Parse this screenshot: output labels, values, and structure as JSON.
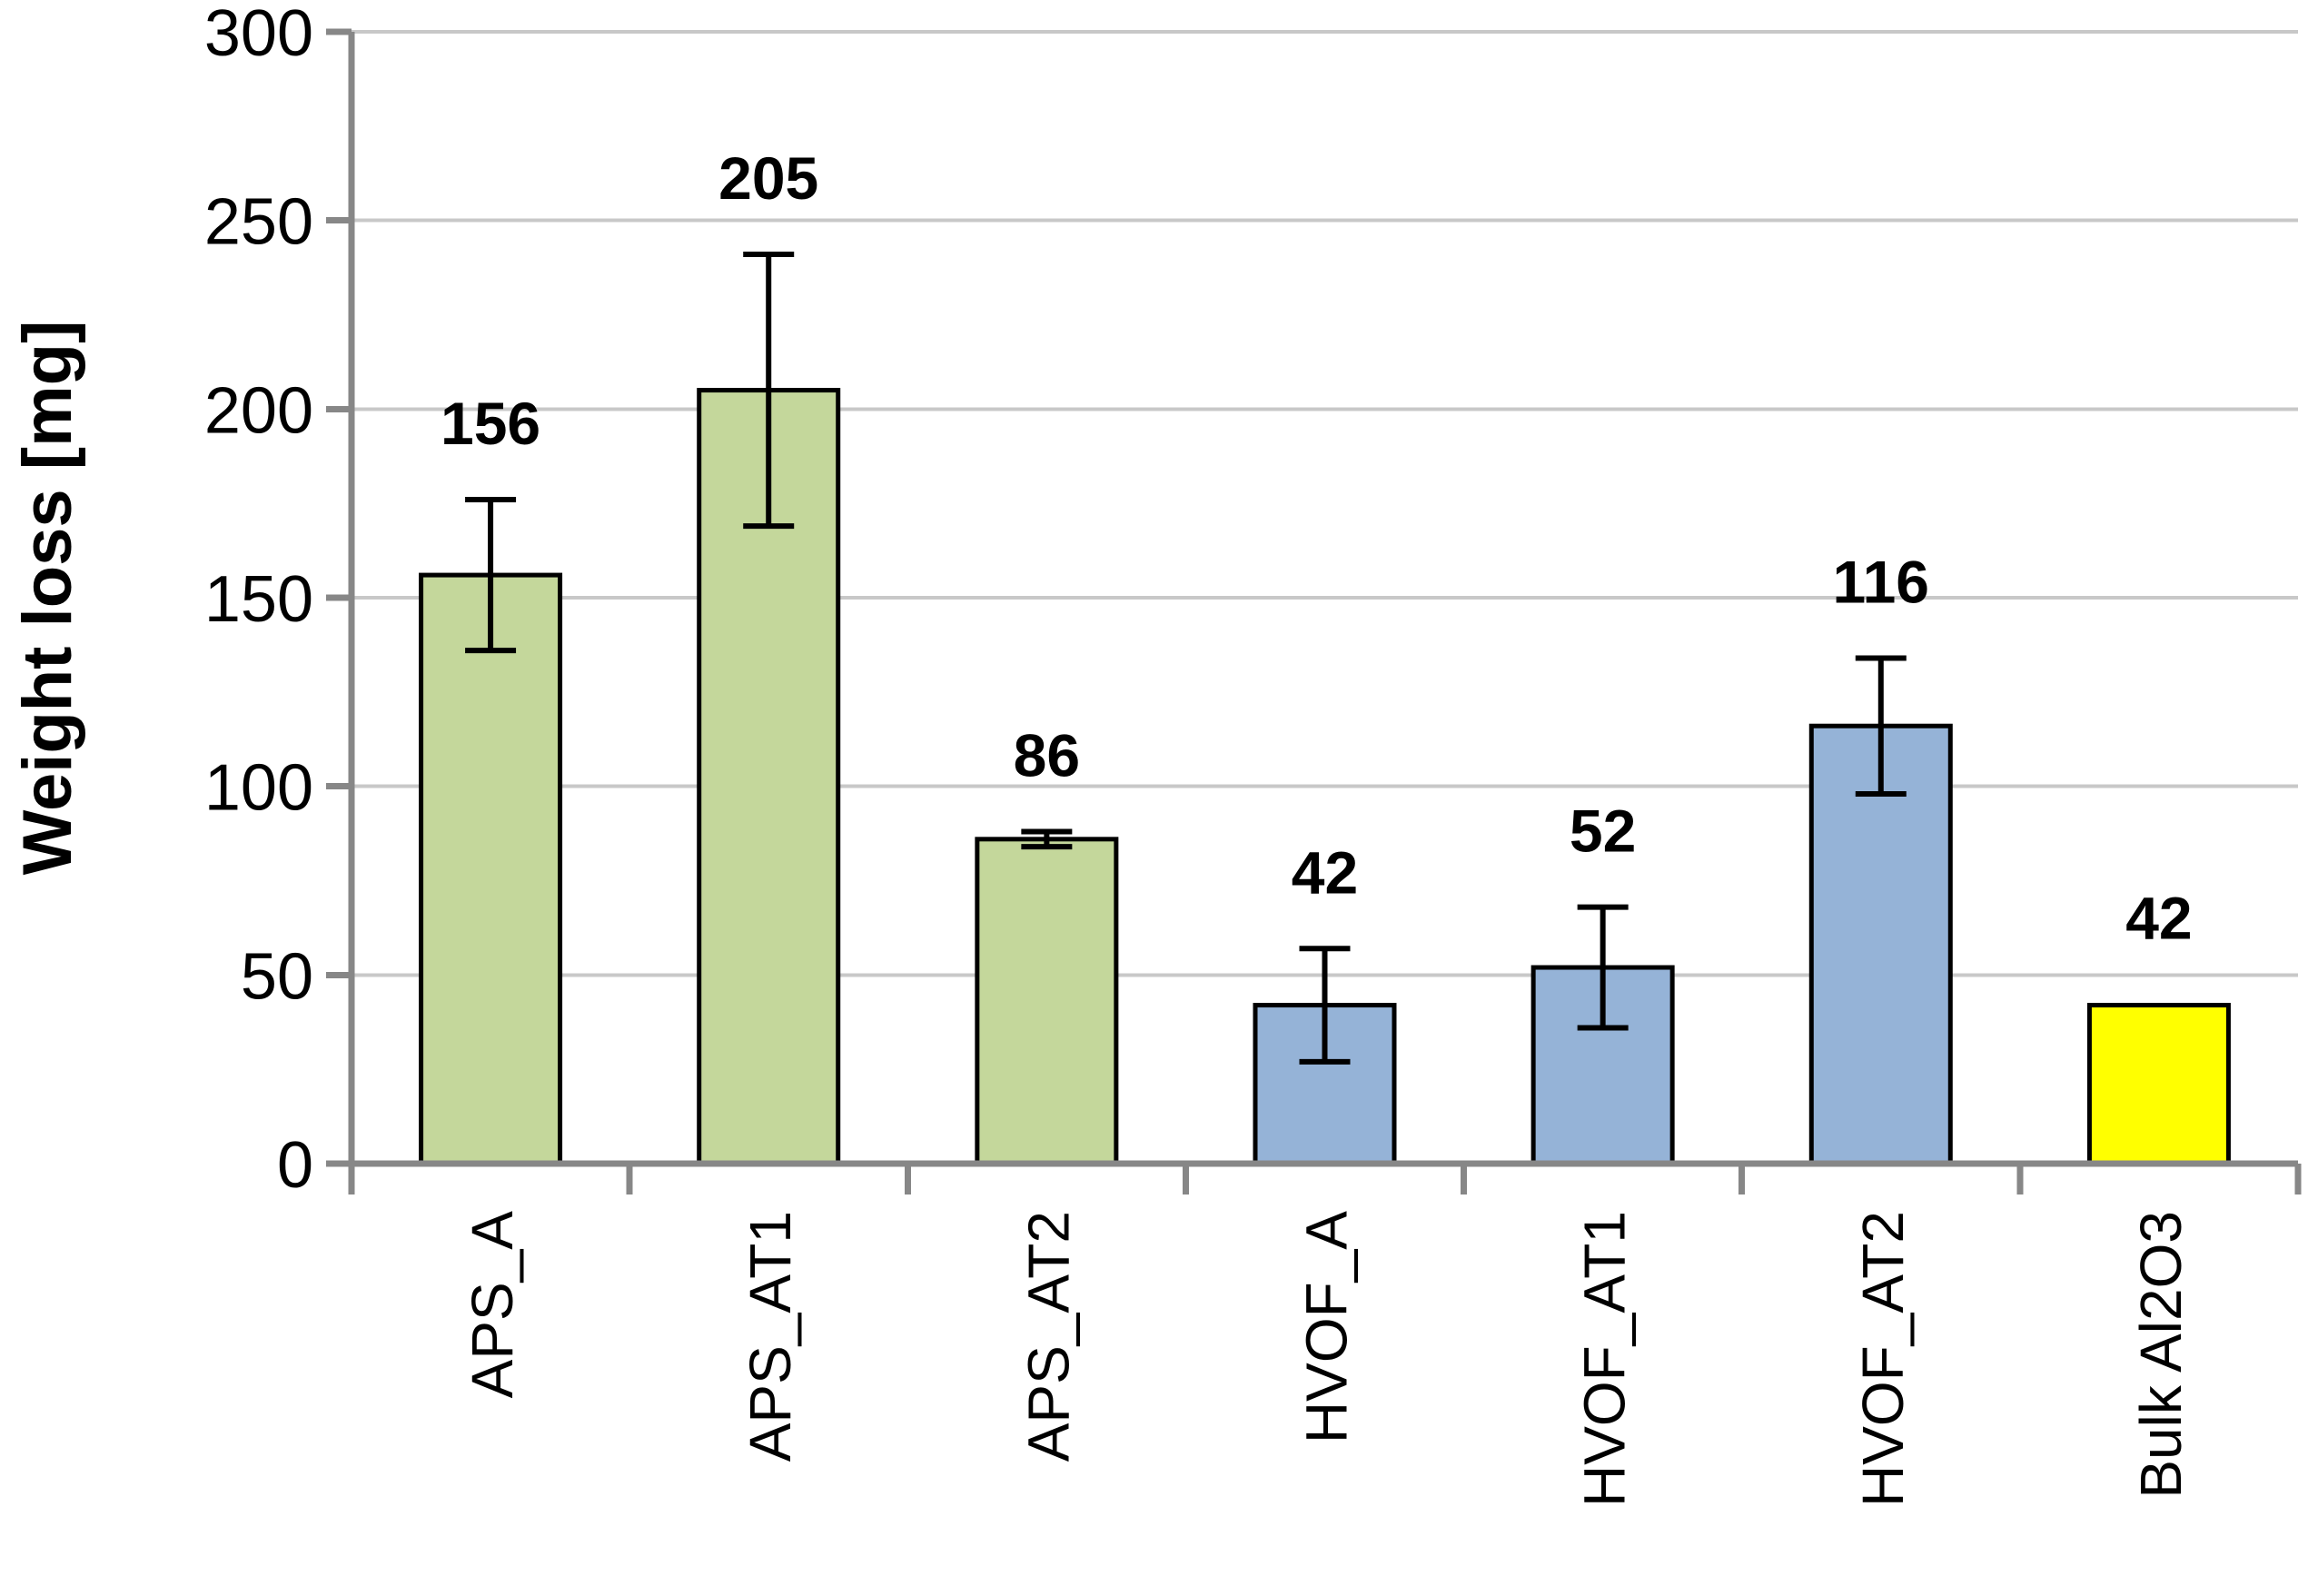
{
  "chart_data": {
    "type": "bar",
    "title": "",
    "xlabel": "",
    "ylabel": "Weight loss [mg]",
    "ylim": [
      0,
      300
    ],
    "ytick_step": 50,
    "yticks": [
      0,
      50,
      100,
      150,
      200,
      250,
      300
    ],
    "ytick_labels": [
      "0",
      "50",
      "100",
      "150",
      "200",
      "250",
      "300"
    ],
    "grid": true,
    "legend": "none",
    "categories": [
      "APS_A",
      "APS_AT1",
      "APS_AT2",
      "HVOF_A",
      "HVOF_AT1",
      "HVOF_AT2",
      "Bulk Al2O3"
    ],
    "values": [
      156,
      205,
      86,
      42,
      52,
      116,
      42
    ],
    "data_labels": [
      "156",
      "205",
      "86",
      "42",
      "52",
      "116",
      "42"
    ],
    "error_bars": [
      20,
      36,
      2,
      15,
      16,
      18,
      null
    ],
    "bar_colors": [
      "#C4D79B",
      "#C4D79B",
      "#C4D79B",
      "#95B3D7",
      "#95B3D7",
      "#95B3D7",
      "#FFFF00"
    ],
    "color_groups": {
      "APS_coatings": "#C4D79B",
      "HVOF_coatings": "#95B3D7",
      "bulk_reference": "#FFFF00"
    },
    "bar_border_color": "#000000",
    "error_bar_color": "#000000",
    "gridline_color": "#C8C8C8",
    "axis_color": "#878787",
    "value_label_color": "#000000",
    "tick_label_color": "#000000"
  }
}
